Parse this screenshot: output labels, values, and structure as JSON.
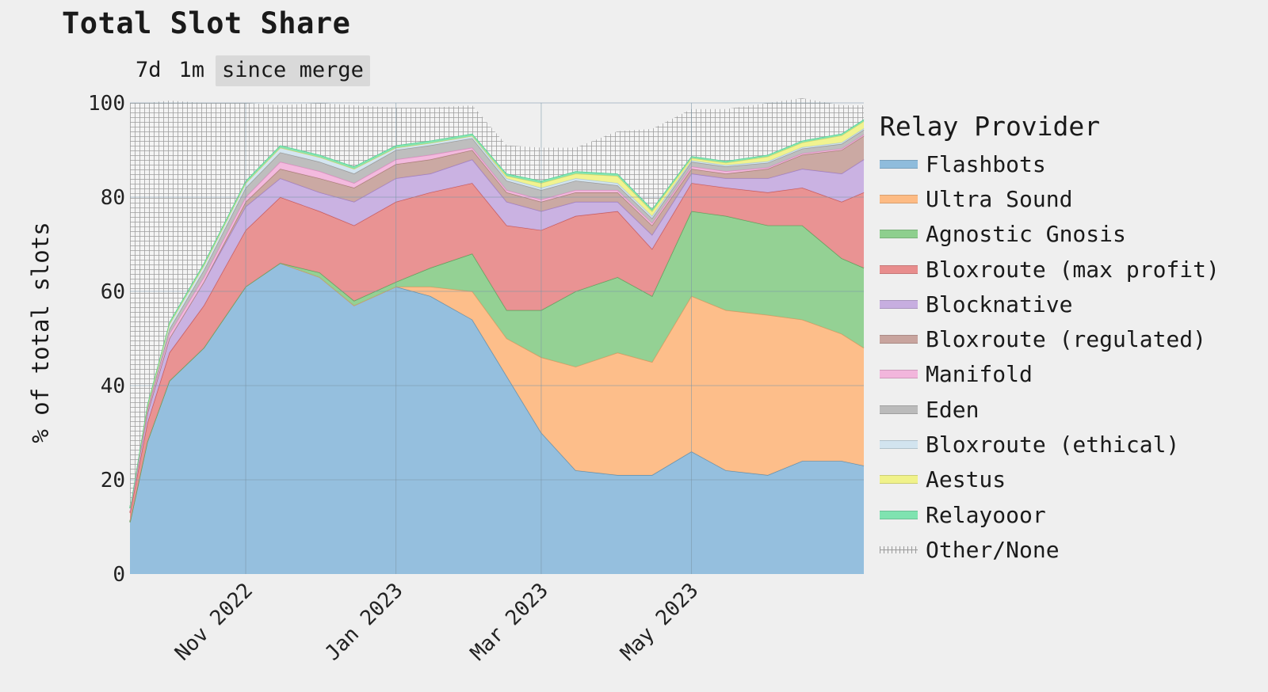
{
  "title": "Total Slot Share",
  "range_buttons": [
    {
      "label": "7d",
      "active": false
    },
    {
      "label": "1m",
      "active": false
    },
    {
      "label": "since merge",
      "active": true
    }
  ],
  "chart_data": {
    "type": "area",
    "stacked": true,
    "ylabel": "% of total slots",
    "xlabel": "",
    "ylim": [
      0,
      100
    ],
    "yticks": [
      0,
      20,
      40,
      60,
      80,
      100
    ],
    "xlim": [
      "2022-09-15",
      "2023-07-10"
    ],
    "xticks": [
      {
        "date": "2022-11-01",
        "label": "Nov 2022"
      },
      {
        "date": "2023-01-01",
        "label": "Jan 2023"
      },
      {
        "date": "2023-03-01",
        "label": "Mar 2023"
      },
      {
        "date": "2023-05-01",
        "label": "May 2023"
      }
    ],
    "grid": true,
    "legend_position": "right",
    "legend_title": "Relay Provider",
    "x": [
      "2022-09-15",
      "2022-09-22",
      "2022-10-01",
      "2022-10-15",
      "2022-11-01",
      "2022-11-15",
      "2022-12-01",
      "2022-12-15",
      "2023-01-01",
      "2023-01-15",
      "2023-02-01",
      "2023-02-15",
      "2023-03-01",
      "2023-03-15",
      "2023-04-01",
      "2023-04-15",
      "2023-05-01",
      "2023-05-15",
      "2023-06-01",
      "2023-06-15",
      "2023-07-01",
      "2023-07-10"
    ],
    "series": [
      {
        "name": "Flashbots",
        "color": "#8fbcdc",
        "line": "#5d8fb0",
        "values": [
          11,
          28,
          41,
          48,
          61,
          66,
          63,
          57,
          61,
          59,
          54,
          42,
          30,
          22,
          21,
          21,
          26,
          22,
          21,
          24,
          24,
          23
        ]
      },
      {
        "name": "Ultra Sound",
        "color": "#fdbb84",
        "line": "#d99a63",
        "values": [
          0,
          0,
          0,
          0,
          0,
          0,
          0,
          0,
          0,
          2,
          6,
          8,
          16,
          22,
          26,
          24,
          33,
          34,
          34,
          30,
          27,
          25
        ]
      },
      {
        "name": "Agnostic Gnosis",
        "color": "#8ecf8e",
        "line": "#5ea35e",
        "values": [
          0,
          0,
          0,
          0,
          0,
          0,
          1,
          1,
          1,
          4,
          8,
          6,
          10,
          16,
          16,
          14,
          18,
          20,
          19,
          20,
          16,
          17
        ]
      },
      {
        "name": "Bloxroute (max profit)",
        "color": "#e88d8d",
        "line": "#c95a5a",
        "values": [
          2,
          4,
          6,
          9,
          12,
          14,
          13,
          16,
          17,
          16,
          15,
          18,
          17,
          16,
          14,
          10,
          6,
          6,
          7,
          8,
          12,
          16
        ]
      },
      {
        "name": "Blocknative",
        "color": "#c7aee0",
        "line": "#a07fc4",
        "values": [
          1,
          2,
          3,
          5,
          5,
          4,
          4,
          5,
          5,
          4,
          5,
          5,
          4,
          3,
          2,
          3,
          2,
          2,
          3,
          4,
          6,
          7
        ]
      },
      {
        "name": "Bloxroute (regulated)",
        "color": "#c8a49e",
        "line": "#a97f78",
        "values": [
          0,
          0,
          0,
          0,
          1,
          2,
          3,
          3,
          3,
          3,
          2,
          2,
          2,
          2,
          2,
          2,
          1,
          1,
          2,
          3,
          5,
          5
        ]
      },
      {
        "name": "Manifold",
        "color": "#f2b6dc",
        "line": "#de8cc2",
        "values": [
          0,
          0.5,
          1,
          1,
          1,
          1.5,
          1.5,
          1,
          1,
          1,
          0.5,
          0.5,
          0.5,
          0.5,
          0.5,
          0.5,
          0.5,
          0.5,
          0.3,
          0.3,
          0.3,
          0.3
        ]
      },
      {
        "name": "Eden",
        "color": "#bbbbbb",
        "line": "#999999",
        "values": [
          0,
          0.5,
          1,
          1.5,
          2,
          2,
          2,
          2,
          2,
          2,
          2,
          2,
          2,
          2,
          1,
          1,
          1,
          1,
          1,
          1,
          1,
          1
        ]
      },
      {
        "name": "Bloxroute (ethical)",
        "color": "#d2e4ef",
        "line": "#aac8d9",
        "values": [
          0,
          0.5,
          1,
          1,
          1,
          1,
          1,
          1,
          0.5,
          0.5,
          0.5,
          0.5,
          0.5,
          0.5,
          0.5,
          0.5,
          0.3,
          0.3,
          0.3,
          0.3,
          0.3,
          0.3
        ]
      },
      {
        "name": "Aestus",
        "color": "#f0f28a",
        "line": "#d6d86a",
        "values": [
          0,
          0,
          0,
          0,
          0,
          0,
          0,
          0,
          0,
          0,
          0,
          0.5,
          1,
          1,
          1.5,
          1,
          0.5,
          0.5,
          1,
          1,
          1.5,
          1.5
        ]
      },
      {
        "name": "Relayooor",
        "color": "#7fe3b0",
        "line": "#4fcf8e",
        "values": [
          0,
          0.5,
          0.5,
          0.5,
          0.5,
          0.5,
          0.5,
          0.5,
          0.5,
          0.5,
          0.5,
          0.5,
          0.5,
          0.5,
          0.5,
          0.5,
          0.4,
          0.4,
          0.4,
          0.4,
          0.4,
          0.4
        ]
      },
      {
        "name": "Other/None",
        "color": "hatch",
        "line": "#9a9a9a",
        "values": [
          86,
          64,
          47,
          34,
          16.5,
          8.5,
          11,
          13,
          8,
          7,
          6,
          6,
          7,
          5,
          9,
          17,
          10,
          11,
          11,
          9,
          6,
          3
        ]
      }
    ]
  }
}
